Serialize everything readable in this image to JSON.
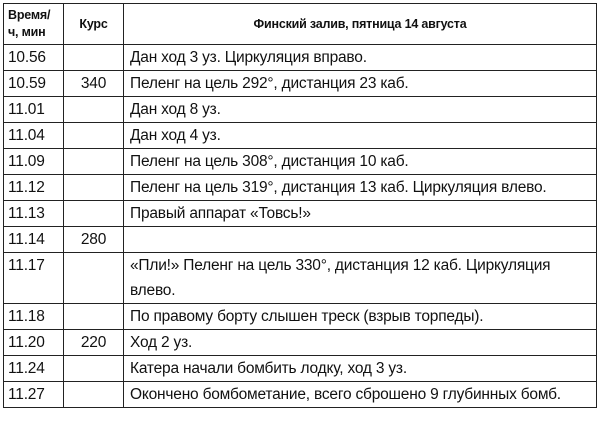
{
  "header": {
    "time": "Время/ ч, мин",
    "course": "Курс",
    "title": "Финский залив, пятница 14 августа"
  },
  "rows": [
    {
      "time": "10.56",
      "course": "",
      "text": "Дан ход 3 уз. Циркуляция вправо."
    },
    {
      "time": "10.59",
      "course": "340",
      "text": "Пеленг на цель 292°, дистанция 23 каб."
    },
    {
      "time": "11.01",
      "course": "",
      "text": "Дан ход 8 уз."
    },
    {
      "time": "11.04",
      "course": "",
      "text": "Дан ход 4 уз."
    },
    {
      "time": "11.09",
      "course": "",
      "text": "Пеленг на цель 308°, дистанция 10 каб."
    },
    {
      "time": "11.12",
      "course": "",
      "text": "Пеленг на цель 319°, дистанция 13 каб. Циркуляция влево."
    },
    {
      "time": "11.13",
      "course": "",
      "text": "Правый аппарат «Товсь!»"
    },
    {
      "time": "11.14",
      "course": "280",
      "text": ""
    },
    {
      "time": "11.17",
      "course": "",
      "text": "«Пли!» Пеленг на цель 330°, дистанция 12 каб. Циркуляция влево."
    },
    {
      "time": "11.18",
      "course": "",
      "text": "По правому борту слышен треск (взрыв торпеды)."
    },
    {
      "time": "11.20",
      "course": "220",
      "text": "Ход 2 уз."
    },
    {
      "time": "11.24",
      "course": "",
      "text": "Катера начали бомбить лодку, ход 3 уз."
    },
    {
      "time": "11.27",
      "course": "",
      "text": "Окончено бомбометание, всего сброшено 9 глубинных бомб."
    }
  ]
}
